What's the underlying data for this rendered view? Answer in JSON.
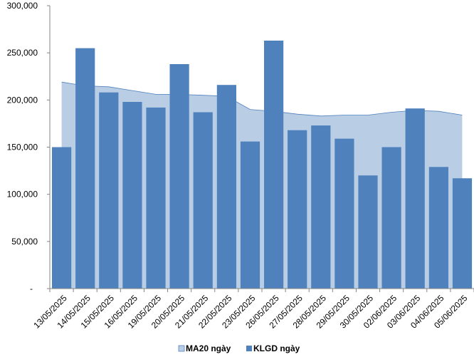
{
  "chart_data": {
    "type": "bar",
    "categories": [
      "13/05/2025",
      "14/05/2025",
      "15/05/2025",
      "16/05/2025",
      "19/05/2025",
      "20/05/2025",
      "21/05/2025",
      "22/05/2025",
      "23/05/2025",
      "26/05/2025",
      "27/05/2025",
      "28/05/2025",
      "29/05/2025",
      "30/05/2025",
      "02/06/2025",
      "03/06/2025",
      "04/06/2025",
      "05/06/2025"
    ],
    "series": [
      {
        "name": "MA20 ngày",
        "type": "area",
        "color": "#B9CDE5",
        "stroke": "#4F81BD",
        "values": [
          219000,
          215000,
          214000,
          210000,
          206000,
          206000,
          205000,
          204000,
          190000,
          188000,
          185000,
          183000,
          184000,
          184000,
          187000,
          189000,
          188000,
          184000
        ]
      },
      {
        "name": "KLGD ngày",
        "type": "bar",
        "color": "#4F81BD",
        "values": [
          150000,
          255000,
          208000,
          198000,
          192000,
          238000,
          187000,
          216000,
          156000,
          263000,
          168000,
          173000,
          159000,
          120000,
          150000,
          191000,
          129000,
          117000
        ]
      }
    ],
    "y_ticks": [
      "-",
      "50,000",
      "100,000",
      "150,000",
      "200,000",
      "250,000",
      "300,000"
    ],
    "ylim": [
      0,
      300000
    ],
    "grid": false,
    "legend_position": "bottom"
  }
}
